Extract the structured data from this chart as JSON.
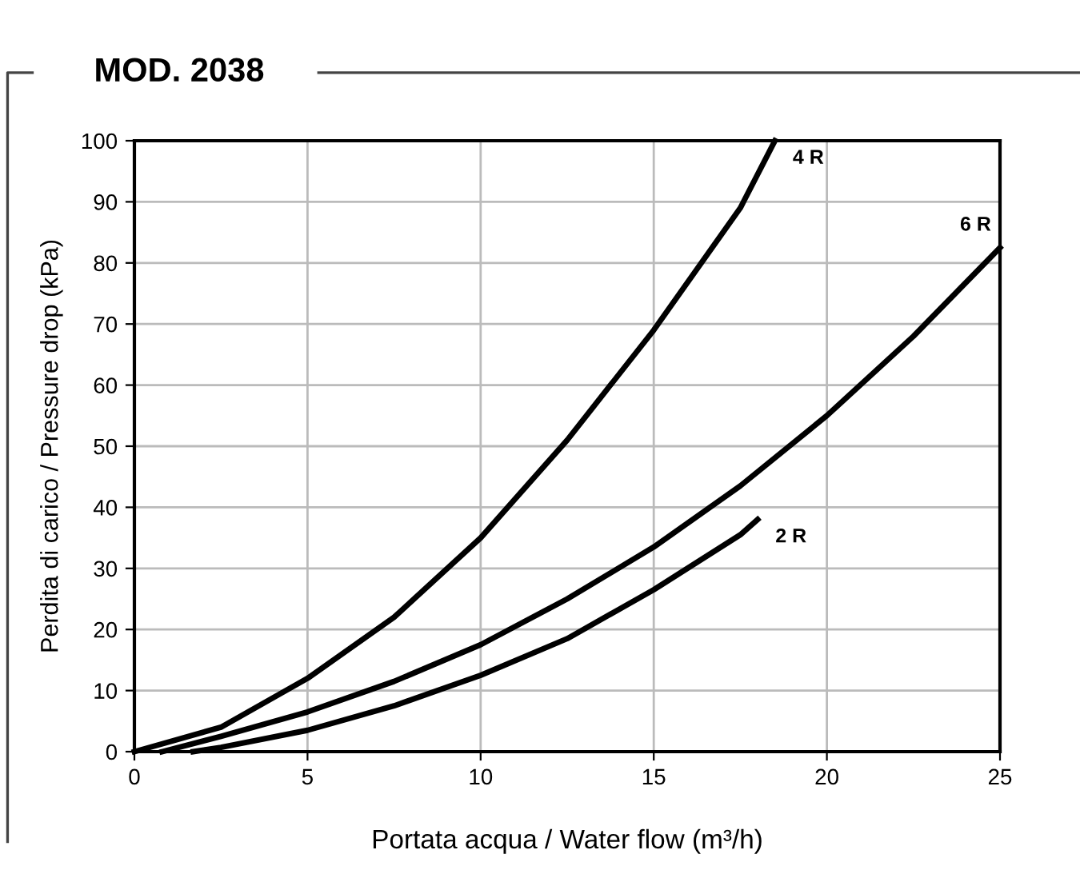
{
  "chart_data": {
    "type": "line",
    "title": "MOD. 2038",
    "xlabel": "Portata acqua / Water flow (m³/h)",
    "ylabel": "Perdita di carico / Pressure drop (kPa)",
    "xlim": [
      0,
      25
    ],
    "xticks": [
      0,
      5,
      10,
      15,
      20,
      25
    ],
    "ylim": [
      0,
      100
    ],
    "yticks": [
      0,
      10,
      20,
      30,
      40,
      50,
      60,
      70,
      80,
      90,
      100
    ],
    "grid": true,
    "legend": false,
    "marker": "none",
    "line_style": "solid",
    "series": [
      {
        "name": "4 R",
        "color": "#000000",
        "x": [
          0,
          2.5,
          5,
          7.5,
          10,
          12.5,
          15,
          17.5,
          18.5
        ],
        "values": [
          0,
          4,
          12,
          22,
          35,
          51,
          69,
          89,
          100
        ]
      },
      {
        "name": "6 R",
        "color": "#000000",
        "x": [
          0.8,
          2.5,
          5,
          7.5,
          10,
          12.5,
          15,
          17.5,
          20,
          22.5,
          25
        ],
        "values": [
          0,
          2.5,
          6.5,
          11.5,
          17.5,
          25,
          33.5,
          43.5,
          55,
          68,
          82.5
        ]
      },
      {
        "name": "2 R",
        "color": "#000000",
        "x": [
          1.7,
          2.5,
          5,
          7.5,
          10,
          12.5,
          15,
          17.5,
          18
        ],
        "values": [
          0,
          0.7,
          3.5,
          7.5,
          12.5,
          18.5,
          26.5,
          35.5,
          38
        ]
      }
    ]
  }
}
